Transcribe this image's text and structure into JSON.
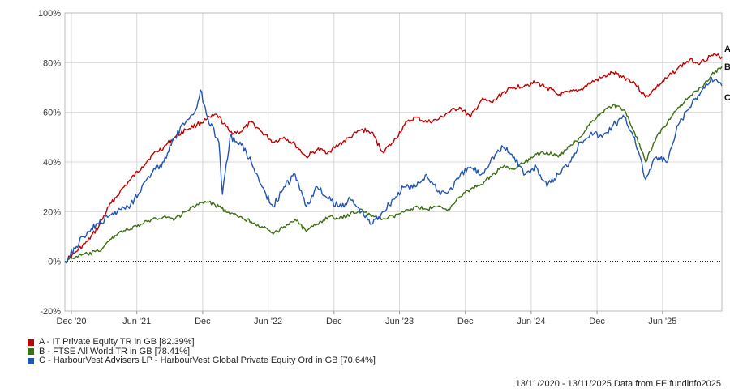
{
  "chart_data": {
    "type": "line",
    "ylim": [
      -20,
      100
    ],
    "y_ticks": [
      -20,
      0,
      20,
      40,
      60,
      80,
      100
    ],
    "y_tick_labels": [
      "-20%",
      "0%",
      "20%",
      "40%",
      "60%",
      "80%",
      "100%"
    ],
    "x_range": [
      "2020-11-13",
      "2025-11-13"
    ],
    "x_ticks": [
      {
        "date": "2020-12-01",
        "label": "Dec '20"
      },
      {
        "date": "2021-06-01",
        "label": "Jun '21"
      },
      {
        "date": "2021-12-01",
        "label": "Dec"
      },
      {
        "date": "2022-06-01",
        "label": "Jun '22"
      },
      {
        "date": "2022-12-01",
        "label": "Dec"
      },
      {
        "date": "2023-06-01",
        "label": "Jun '23"
      },
      {
        "date": "2023-12-01",
        "label": "Dec"
      },
      {
        "date": "2024-06-01",
        "label": "Jun '24"
      },
      {
        "date": "2024-12-01",
        "label": "Dec"
      },
      {
        "date": "2025-06-01",
        "label": "Jun '25"
      }
    ],
    "grid": true,
    "legend_position": "bottom-left",
    "series": [
      {
        "key": "A",
        "name": "A - IT Private Equity TR in GB [82.39%]",
        "color": "#c00000",
        "points": [
          [
            "2020-11-13",
            0
          ],
          [
            "2020-12-15",
            4
          ],
          [
            "2021-01-15",
            8
          ],
          [
            "2021-02-15",
            14
          ],
          [
            "2021-03-15",
            22
          ],
          [
            "2021-04-15",
            28
          ],
          [
            "2021-05-15",
            33
          ],
          [
            "2021-06-15",
            38
          ],
          [
            "2021-07-15",
            43
          ],
          [
            "2021-08-15",
            46
          ],
          [
            "2021-09-15",
            50
          ],
          [
            "2021-10-15",
            53
          ],
          [
            "2021-11-15",
            55
          ],
          [
            "2021-12-10",
            57
          ],
          [
            "2022-01-10",
            59
          ],
          [
            "2022-02-15",
            52
          ],
          [
            "2022-03-15",
            52
          ],
          [
            "2022-04-15",
            56
          ],
          [
            "2022-05-15",
            52
          ],
          [
            "2022-06-15",
            48
          ],
          [
            "2022-07-15",
            50
          ],
          [
            "2022-08-15",
            47
          ],
          [
            "2022-09-15",
            42
          ],
          [
            "2022-10-15",
            45
          ],
          [
            "2022-11-15",
            44
          ],
          [
            "2022-12-15",
            47
          ],
          [
            "2023-01-15",
            50
          ],
          [
            "2023-02-15",
            53
          ],
          [
            "2023-03-15",
            52
          ],
          [
            "2023-04-15",
            44
          ],
          [
            "2023-05-15",
            48
          ],
          [
            "2023-06-15",
            55
          ],
          [
            "2023-07-15",
            58
          ],
          [
            "2023-08-15",
            56
          ],
          [
            "2023-09-15",
            57
          ],
          [
            "2023-10-15",
            60
          ],
          [
            "2023-11-15",
            62
          ],
          [
            "2023-12-15",
            58
          ],
          [
            "2024-01-15",
            65
          ],
          [
            "2024-02-15",
            64
          ],
          [
            "2024-03-15",
            68
          ],
          [
            "2024-04-15",
            70
          ],
          [
            "2024-05-15",
            71
          ],
          [
            "2024-06-15",
            72
          ],
          [
            "2024-07-15",
            70
          ],
          [
            "2024-08-15",
            67
          ],
          [
            "2024-09-15",
            68
          ],
          [
            "2024-10-15",
            69
          ],
          [
            "2024-11-15",
            72
          ],
          [
            "2024-12-15",
            74
          ],
          [
            "2025-01-15",
            76
          ],
          [
            "2025-02-15",
            74
          ],
          [
            "2025-03-15",
            72
          ],
          [
            "2025-04-15",
            66
          ],
          [
            "2025-05-15",
            70
          ],
          [
            "2025-06-15",
            74
          ],
          [
            "2025-07-15",
            78
          ],
          [
            "2025-08-15",
            81
          ],
          [
            "2025-09-15",
            80
          ],
          [
            "2025-10-15",
            83
          ],
          [
            "2025-11-13",
            82.39
          ]
        ]
      },
      {
        "key": "B",
        "name": "B - FTSE All World TR in GB [78.41%]",
        "color": "#3a6e12",
        "points": [
          [
            "2020-11-13",
            0
          ],
          [
            "2020-12-15",
            2
          ],
          [
            "2021-01-15",
            3
          ],
          [
            "2021-02-15",
            4
          ],
          [
            "2021-03-15",
            8
          ],
          [
            "2021-04-15",
            12
          ],
          [
            "2021-05-15",
            13
          ],
          [
            "2021-06-15",
            15
          ],
          [
            "2021-07-15",
            17
          ],
          [
            "2021-08-15",
            18
          ],
          [
            "2021-09-15",
            17
          ],
          [
            "2021-10-15",
            20
          ],
          [
            "2021-11-15",
            23
          ],
          [
            "2021-12-15",
            24
          ],
          [
            "2022-01-15",
            22
          ],
          [
            "2022-02-15",
            19
          ],
          [
            "2022-03-15",
            18
          ],
          [
            "2022-04-15",
            16
          ],
          [
            "2022-05-15",
            14
          ],
          [
            "2022-06-15",
            11
          ],
          [
            "2022-07-15",
            14
          ],
          [
            "2022-08-15",
            17
          ],
          [
            "2022-09-15",
            12
          ],
          [
            "2022-10-15",
            15
          ],
          [
            "2022-11-15",
            18
          ],
          [
            "2022-12-15",
            17
          ],
          [
            "2023-01-15",
            19
          ],
          [
            "2023-02-15",
            21
          ],
          [
            "2023-03-15",
            18
          ],
          [
            "2023-04-15",
            17
          ],
          [
            "2023-05-15",
            18
          ],
          [
            "2023-06-15",
            20
          ],
          [
            "2023-07-15",
            22
          ],
          [
            "2023-08-15",
            21
          ],
          [
            "2023-09-15",
            22
          ],
          [
            "2023-10-15",
            21
          ],
          [
            "2023-11-15",
            26
          ],
          [
            "2023-12-15",
            29
          ],
          [
            "2024-01-15",
            31
          ],
          [
            "2024-02-15",
            35
          ],
          [
            "2024-03-15",
            38
          ],
          [
            "2024-04-15",
            37
          ],
          [
            "2024-05-15",
            40
          ],
          [
            "2024-06-15",
            43
          ],
          [
            "2024-07-15",
            44
          ],
          [
            "2024-08-15",
            42
          ],
          [
            "2024-09-15",
            46
          ],
          [
            "2024-10-15",
            50
          ],
          [
            "2024-11-15",
            56
          ],
          [
            "2024-12-15",
            60
          ],
          [
            "2025-01-15",
            63
          ],
          [
            "2025-02-15",
            61
          ],
          [
            "2025-03-15",
            52
          ],
          [
            "2025-04-15",
            40
          ],
          [
            "2025-05-15",
            50
          ],
          [
            "2025-06-15",
            56
          ],
          [
            "2025-07-15",
            62
          ],
          [
            "2025-08-15",
            66
          ],
          [
            "2025-09-15",
            70
          ],
          [
            "2025-10-15",
            75
          ],
          [
            "2025-11-13",
            78.41
          ]
        ]
      },
      {
        "key": "C",
        "name": "C - HarbourVest Advisers LP - HarbourVest Global Private Equity Ord in GB [70.64%]",
        "color": "#2255b0",
        "points": [
          [
            "2020-11-13",
            0
          ],
          [
            "2020-12-15",
            6
          ],
          [
            "2021-01-15",
            12
          ],
          [
            "2021-02-15",
            15
          ],
          [
            "2021-03-15",
            18
          ],
          [
            "2021-04-15",
            21
          ],
          [
            "2021-05-15",
            23
          ],
          [
            "2021-06-15",
            30
          ],
          [
            "2021-07-15",
            36
          ],
          [
            "2021-08-15",
            40
          ],
          [
            "2021-09-15",
            50
          ],
          [
            "2021-10-15",
            56
          ],
          [
            "2021-11-15",
            62
          ],
          [
            "2021-11-25",
            69
          ],
          [
            "2021-12-15",
            58
          ],
          [
            "2022-01-15",
            48
          ],
          [
            "2022-01-25",
            27
          ],
          [
            "2022-02-15",
            50
          ],
          [
            "2022-03-15",
            48
          ],
          [
            "2022-04-15",
            40
          ],
          [
            "2022-05-15",
            30
          ],
          [
            "2022-06-15",
            22
          ],
          [
            "2022-07-15",
            30
          ],
          [
            "2022-08-15",
            35
          ],
          [
            "2022-09-15",
            22
          ],
          [
            "2022-10-15",
            30
          ],
          [
            "2022-11-15",
            25
          ],
          [
            "2022-12-15",
            22
          ],
          [
            "2023-01-15",
            25
          ],
          [
            "2023-02-15",
            20
          ],
          [
            "2023-03-15",
            15
          ],
          [
            "2023-04-15",
            20
          ],
          [
            "2023-05-15",
            25
          ],
          [
            "2023-06-15",
            30
          ],
          [
            "2023-07-15",
            30
          ],
          [
            "2023-08-15",
            35
          ],
          [
            "2023-09-15",
            28
          ],
          [
            "2023-10-15",
            28
          ],
          [
            "2023-11-15",
            34
          ],
          [
            "2023-12-15",
            38
          ],
          [
            "2024-01-15",
            35
          ],
          [
            "2024-02-15",
            42
          ],
          [
            "2024-03-15",
            46
          ],
          [
            "2024-04-15",
            42
          ],
          [
            "2024-05-15",
            35
          ],
          [
            "2024-06-15",
            38
          ],
          [
            "2024-07-15",
            30
          ],
          [
            "2024-08-15",
            35
          ],
          [
            "2024-09-15",
            40
          ],
          [
            "2024-10-15",
            48
          ],
          [
            "2024-11-15",
            52
          ],
          [
            "2024-12-15",
            50
          ],
          [
            "2025-01-15",
            55
          ],
          [
            "2025-02-15",
            58
          ],
          [
            "2025-03-15",
            50
          ],
          [
            "2025-04-15",
            33
          ],
          [
            "2025-05-15",
            42
          ],
          [
            "2025-06-15",
            40
          ],
          [
            "2025-07-15",
            55
          ],
          [
            "2025-08-15",
            62
          ],
          [
            "2025-09-15",
            68
          ],
          [
            "2025-10-15",
            74
          ],
          [
            "2025-11-13",
            70.64
          ]
        ]
      }
    ]
  },
  "footer": {
    "text": "13/11/2020 - 13/11/2025 Data from FE fundinfo2025"
  }
}
